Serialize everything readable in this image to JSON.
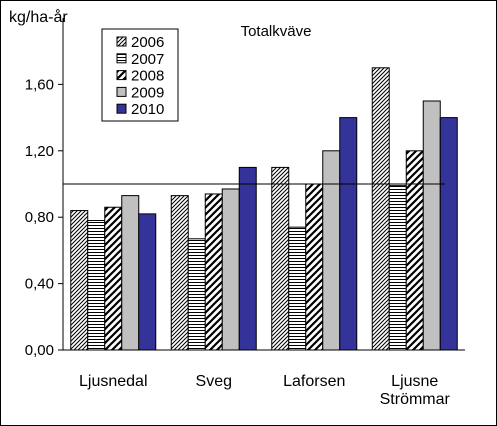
{
  "chart_data": {
    "type": "bar",
    "title": "Totalkväve",
    "ylabel": "kg/ha-år",
    "xlabel": "",
    "ylim": [
      0,
      2.0
    ],
    "y_ticks": [
      "0,00",
      "0,40",
      "0,80",
      "1,20",
      "1,60"
    ],
    "y_tick_values": [
      0,
      0.4,
      0.8,
      1.2,
      1.6
    ],
    "reference_line": 1.0,
    "grid": false,
    "legend_position": "top-left",
    "categories": [
      "Ljusnedal",
      "Sveg",
      "Laforsen",
      "Ljusne\nStrömmar"
    ],
    "series": [
      {
        "name": "2006",
        "values": [
          0.84,
          0.93,
          1.1,
          1.7
        ],
        "pattern": "diag-dense",
        "color": "#000000"
      },
      {
        "name": "2007",
        "values": [
          0.78,
          0.67,
          0.74,
          0.99
        ],
        "pattern": "horizontal",
        "color": "#000000"
      },
      {
        "name": "2008",
        "values": [
          0.86,
          0.94,
          1.0,
          1.2
        ],
        "pattern": "diag-thick",
        "color": "#000000"
      },
      {
        "name": "2009",
        "values": [
          0.93,
          0.97,
          1.2,
          1.5
        ],
        "pattern": "solid",
        "color": "#c0c0c0"
      },
      {
        "name": "2010",
        "values": [
          0.82,
          1.1,
          1.4,
          1.4
        ],
        "pattern": "solid",
        "color": "#333399"
      }
    ]
  }
}
